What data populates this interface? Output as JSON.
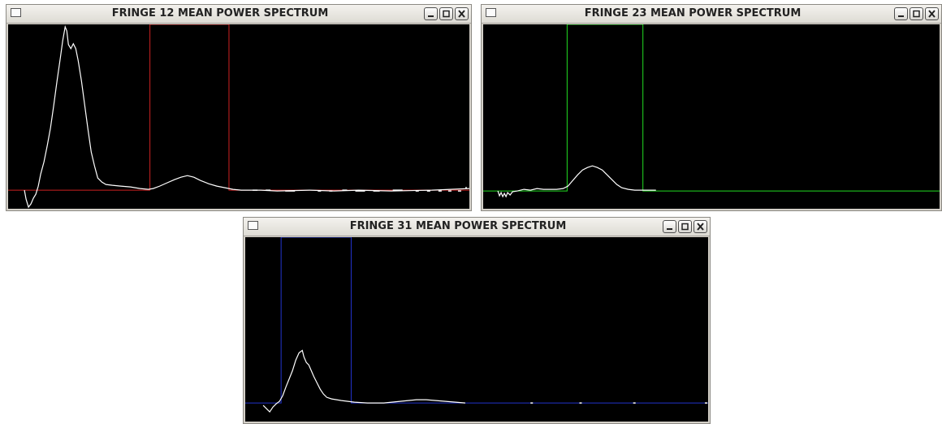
{
  "windows": [
    {
      "id": "w12",
      "title": "FRINGE 12 MEAN POWER SPECTRUM",
      "window_color": "#cc2222"
    },
    {
      "id": "w23",
      "title": "FRINGE 23 MEAN POWER SPECTRUM",
      "window_color": "#22dd22"
    },
    {
      "id": "w31",
      "title": "FRINGE 31 MEAN POWER SPECTRUM",
      "window_color": "#2233cc"
    }
  ],
  "title_buttons": [
    "minimize-icon",
    "maximize-icon",
    "close-icon"
  ],
  "trace_color": "#ffffff",
  "background_color": "#000000"
}
